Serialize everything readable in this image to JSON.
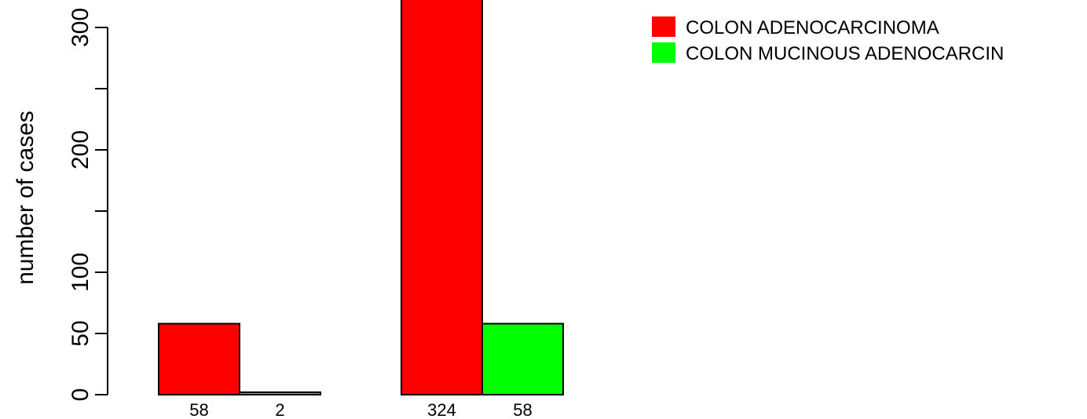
{
  "chart_data": {
    "type": "bar",
    "layout": "grouped",
    "groups": [
      "",
      ""
    ],
    "series": [
      {
        "name": "COLON ADENOCARCINOMA",
        "color": "#ff0000",
        "values": [
          58,
          324
        ]
      },
      {
        "name": "COLON MUCINOUS ADENOCARCIN",
        "color": "#00ff00",
        "values": [
          2,
          58
        ]
      }
    ],
    "value_labels": [
      [
        "58",
        "2"
      ],
      [
        "324",
        "58"
      ]
    ],
    "title": "",
    "xlabel": "",
    "ylabel": "number of cases",
    "ylim": [
      0,
      324
    ],
    "yticks": [
      0,
      50,
      100,
      150,
      200,
      250,
      300
    ],
    "ytick_labels": [
      "0",
      "50",
      "100",
      "",
      "200",
      "",
      "300"
    ],
    "legend": {
      "position": "top-right",
      "entries": [
        "COLON ADENOCARCINOMA",
        "COLON MUCINOUS ADENOCARCIN"
      ]
    },
    "grid": false
  }
}
